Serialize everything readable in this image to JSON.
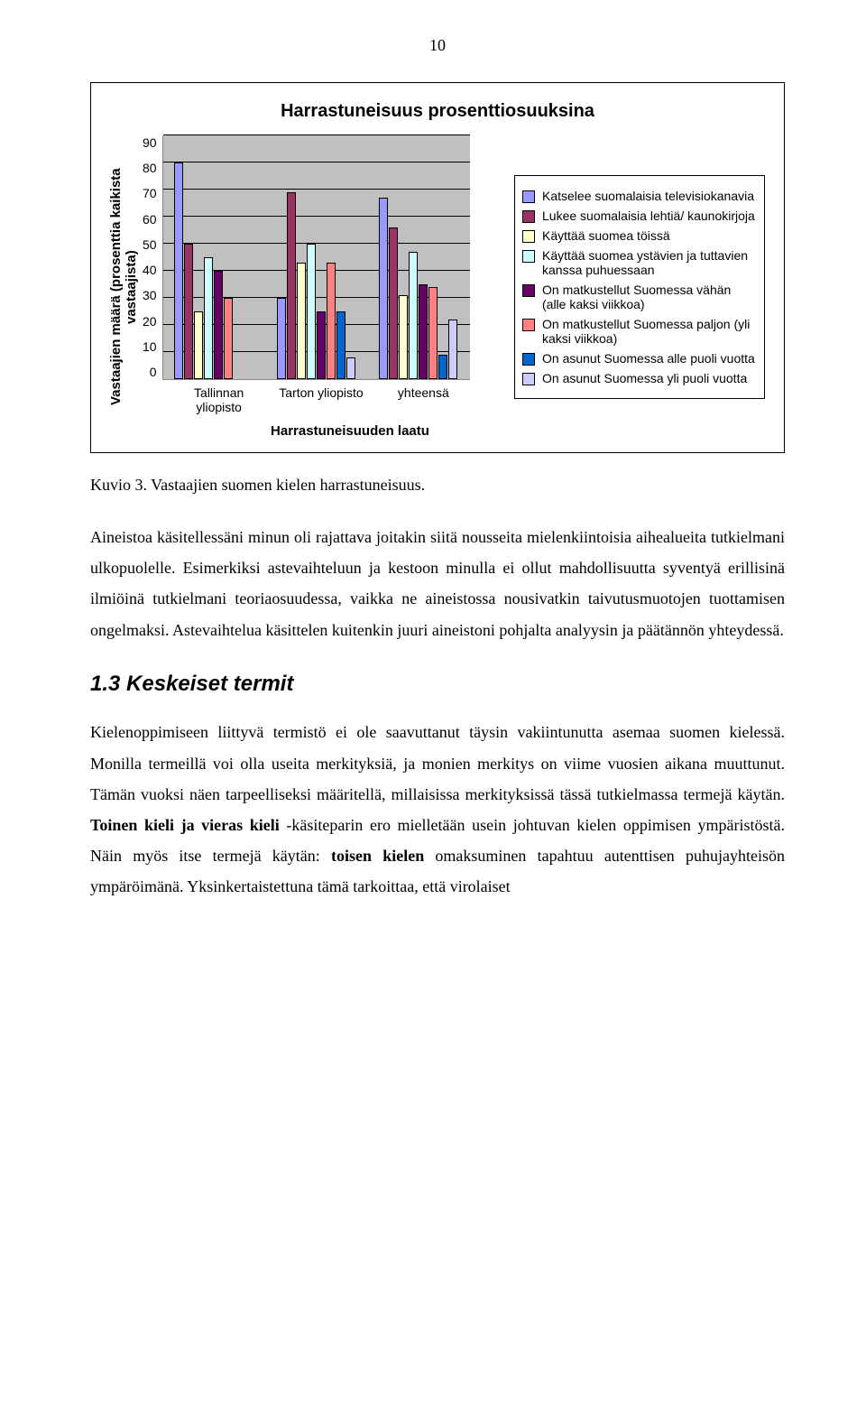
{
  "page_number": "10",
  "chart": {
    "type": "bar",
    "title": "Harrastuneisuus prosenttiosuuksina",
    "ylabel": "Vastaajien määrä (prosenttia kaikista\nvastaajista)",
    "xlabel": "Harrastuneisuuden laatu",
    "ylim": [
      0,
      90
    ],
    "ytick_step": 10,
    "yticks": [
      "90",
      "80",
      "70",
      "60",
      "50",
      "40",
      "30",
      "20",
      "10",
      "0"
    ],
    "background_color": "#c0c0c0",
    "grid_color": "#000000",
    "font_family": "Arial",
    "title_fontsize": 20,
    "label_fontsize": 15,
    "tick_fontsize": 14,
    "legend_fontsize": 14,
    "categories": [
      "Tallinnan yliopisto",
      "Tarton yliopisto",
      "yhteensä"
    ],
    "series": [
      {
        "label": "Katselee suomalaisia televisiokanavia",
        "color": "#9999ff",
        "values": [
          80,
          30,
          67
        ]
      },
      {
        "label": "Lukee suomalaisia lehtiä/ kaunokirjoja",
        "color": "#993366",
        "values": [
          50,
          69,
          56
        ]
      },
      {
        "label": "Käyttää suomea töissä",
        "color": "#ffffcc",
        "values": [
          25,
          43,
          31
        ]
      },
      {
        "label": "Käyttää suomea ystävien ja tuttavien kanssa puhuessaan",
        "color": "#ccffff",
        "values": [
          45,
          50,
          47
        ]
      },
      {
        "label": "On matkustellut Suomessa vähän (alle kaksi viikkoa)",
        "color": "#660066",
        "values": [
          40,
          25,
          35
        ]
      },
      {
        "label": "On matkustellut Suomessa paljon (yli kaksi viikkoa)",
        "color": "#ff8080",
        "values": [
          30,
          43,
          34
        ]
      },
      {
        "label": "On asunut Suomessa alle puoli vuotta",
        "color": "#0066cc",
        "values": [
          0,
          25,
          9
        ]
      },
      {
        "label": "On asunut Suomessa yli puoli vuotta",
        "color": "#ccccff",
        "values": [
          0,
          8,
          22
        ]
      }
    ]
  },
  "caption": "Kuvio 3. Vastaajien suomen kielen harrastuneisuus.",
  "paragraph1_parts": [
    "Aineistoa käsitellessäni minun oli rajattava joitakin siitä nousseita mielenkiintoisia aihealueita tutkielmani ulkopuolelle. Esimerkiksi astevaihteluun ja kestoon minulla ei ollut mahdollisuutta syventyä erillisinä ilmiöinä tutkielmani teoriaosuudessa, vaikka ne aineistossa nousivatkin taivutusmuotojen tuottamisen ongelmaksi. Astevaihtelua käsittelen kuitenkin juuri aineistoni pohjalta analyysin ja päätännön yhteydessä."
  ],
  "section_heading": "1.3 Keskeiset termit",
  "paragraph2_html": "Kielenoppimiseen liittyvä termistö ei ole saavuttanut täysin vakiintunutta asemaa suomen kielessä. Monilla termeillä voi olla useita merkityksiä, ja monien merkitys on viime vuosien aikana muuttunut. Tämän vuoksi näen tarpeelliseksi määritellä, millaisissa merkityksissä tässä tutkielmassa termejä käytän. <b>Toinen kieli ja vieras kieli</b> -käsiteparin ero mielletään usein johtuvan kielen oppimisen ympäristöstä. Näin myös itse termejä käytän: <b>toisen kielen</b> omaksuminen tapahtuu autenttisen puhujayhteisön ympäröimänä. Yksinkertaistettuna tämä tarkoittaa, että virolaiset"
}
